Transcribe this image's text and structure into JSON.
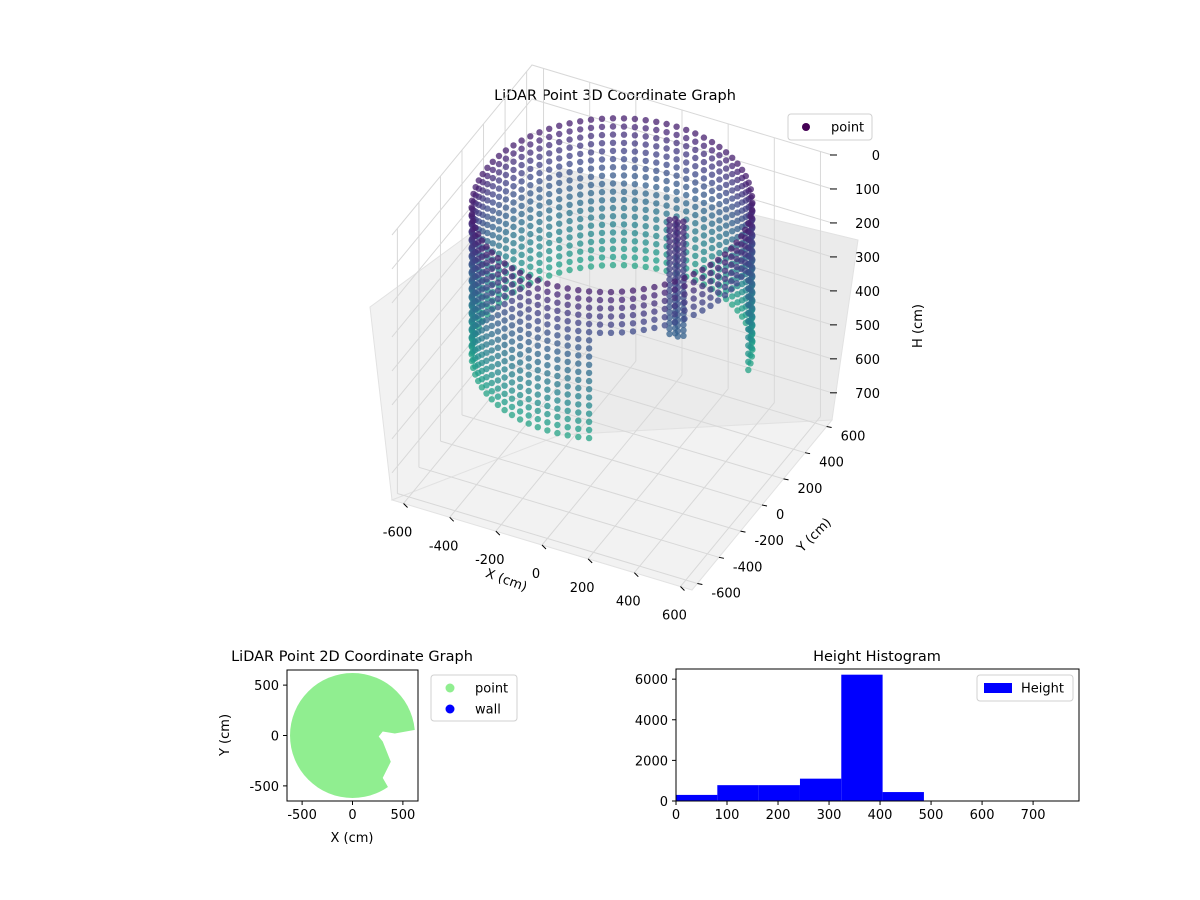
{
  "chart_data": [
    {
      "type": "scatter3d",
      "title": "LiDAR Point 3D Coordinate Graph",
      "xlabel": "X (cm)",
      "ylabel": "Y (cm)",
      "zlabel": "H (cm)",
      "xlim": [
        -650,
        650
      ],
      "ylim": [
        -650,
        650
      ],
      "zlim": [
        780,
        0
      ],
      "x_ticks": [
        "-600",
        "-400",
        "-200",
        "0",
        "200",
        "400",
        "600"
      ],
      "y_ticks": [
        "-600",
        "-400",
        "-200",
        "0",
        "200",
        "400",
        "600"
      ],
      "z_ticks": [
        "0",
        "100",
        "200",
        "300",
        "400",
        "500",
        "600",
        "700"
      ],
      "grid": true,
      "legend": {
        "placement": "top-right",
        "entries": [
          {
            "label": "point",
            "color": "#440154"
          }
        ]
      },
      "colormap": "viridis",
      "description_series": [
        {
          "name": "point",
          "shape": "cylinder wall",
          "radius": 600,
          "h_min": 30,
          "h_max": 480,
          "gap_angle_deg": [
            -70,
            10
          ]
        },
        {
          "name": "point",
          "shape": "central column",
          "x": 220,
          "y": 120,
          "h_min": 80,
          "h_max": 430
        }
      ]
    },
    {
      "type": "scatter",
      "title": "LiDAR Point 2D Coordinate Graph",
      "xlabel": "X (cm)",
      "ylabel": "Y (cm)",
      "xlim": [
        -650,
        650
      ],
      "ylim": [
        -650,
        650
      ],
      "x_ticks": [
        "-500",
        "0",
        "500"
      ],
      "y_ticks": [
        "500",
        "0",
        "-500"
      ],
      "legend": {
        "placement": "outside-right",
        "entries": [
          {
            "label": "point",
            "color": "#90ee90"
          },
          {
            "label": "wall",
            "color": "#0000ff"
          }
        ]
      },
      "series": [
        {
          "name": "point",
          "color": "#90ee90",
          "shape": "filled disk",
          "center": [
            0,
            0
          ],
          "radius": 620
        }
      ]
    },
    {
      "type": "histogram",
      "title": "Height Histogram",
      "xlabel": "",
      "ylabel": "",
      "xlim": [
        0,
        790
      ],
      "ylim": [
        0,
        6500
      ],
      "x_ticks": [
        "0",
        "100",
        "200",
        "300",
        "400",
        "500",
        "600",
        "700"
      ],
      "y_ticks": [
        "0",
        "2000",
        "4000",
        "6000"
      ],
      "legend": {
        "placement": "top-right",
        "entries": [
          {
            "label": "Height",
            "color": "#0000ff"
          }
        ]
      },
      "bin_edges": [
        0,
        81,
        162,
        243,
        324,
        405,
        486,
        567,
        648,
        729,
        810
      ],
      "values": [
        300,
        780,
        780,
        1100,
        6220,
        440,
        0,
        0,
        0,
        0
      ],
      "series": [
        {
          "name": "Height",
          "color": "#0000ff"
        }
      ]
    }
  ]
}
